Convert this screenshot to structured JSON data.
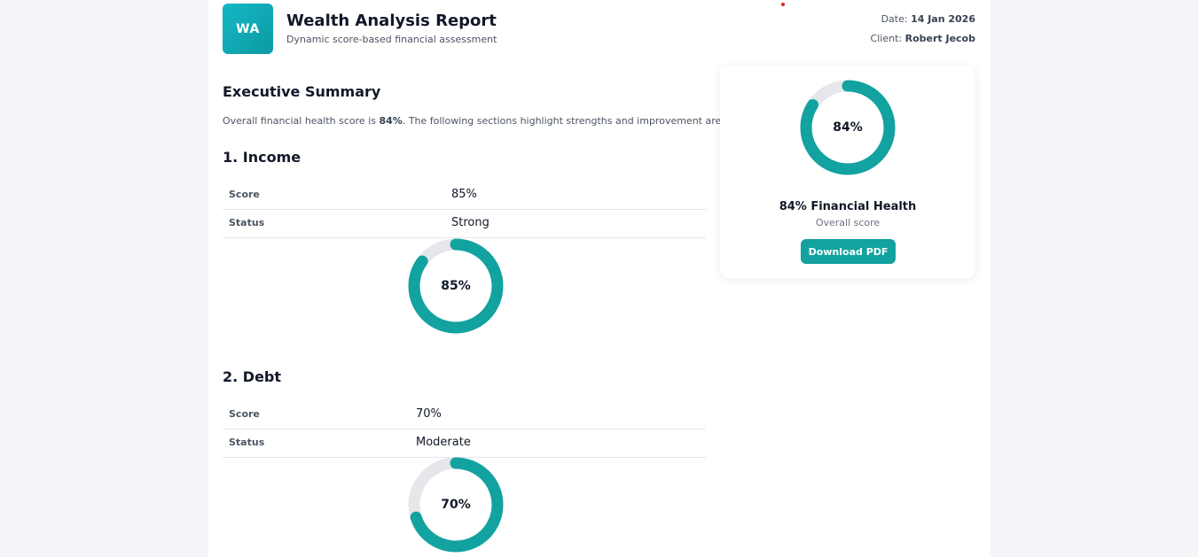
{
  "header": {
    "logo_text": "WA",
    "title": "Wealth Analysis Report",
    "subtitle": "Dynamic score-based financial assessment",
    "date_label": "Date:",
    "date_value": "14 Jan 2026",
    "client_label": "Client:",
    "client_value": "Robert Jecob"
  },
  "summary": {
    "heading": "Executive Summary",
    "text_before": "Overall financial health score is ",
    "score": "84%",
    "text_after": ". The following sections highlight strengths and improvement areas."
  },
  "sections": [
    {
      "heading": "1. Income",
      "score_label": "Score",
      "score_value": "85%",
      "status_label": "Status",
      "status_value": "Strong",
      "donut_label": "85%",
      "donut_fraction": 0.85
    },
    {
      "heading": "2. Debt",
      "score_label": "Score",
      "score_value": "70%",
      "status_label": "Status",
      "status_value": "Moderate",
      "donut_label": "70%",
      "donut_fraction": 0.7
    }
  ],
  "card": {
    "donut_label": "84%",
    "donut_fraction": 0.84,
    "title": "84% Financial Health",
    "subtitle": "Overall score",
    "download_label": "Download PDF"
  },
  "colors": {
    "accent": "#12a2a0",
    "track": "#e5e7eb",
    "logo_start": "#14b8c4",
    "logo_end": "#0d9aa3"
  }
}
